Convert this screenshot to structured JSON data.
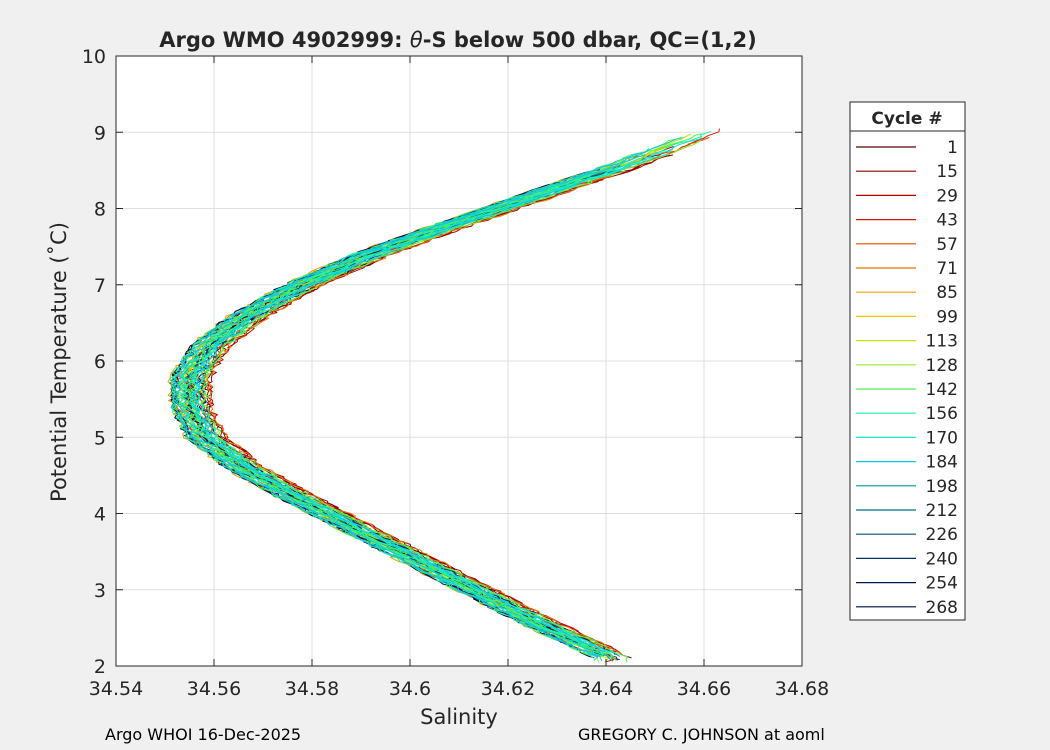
{
  "chart_data": {
    "type": "line",
    "title_prefix": "Argo WMO 4902999: ",
    "title_symbol": "θ",
    "title_suffix": "-S below 500 dbar,  QC=(1,2)",
    "xlabel": "Salinity",
    "ylabel": "Potential Temperature (˚C)",
    "xlim": [
      34.54,
      34.68
    ],
    "ylim": [
      2,
      10
    ],
    "x_ticks": [
      34.54,
      34.56,
      34.58,
      34.6,
      34.62,
      34.64,
      34.66,
      34.68
    ],
    "x_tick_labels": [
      "34.54",
      "34.56",
      "34.58",
      "34.6",
      "34.62",
      "34.64",
      "34.66",
      "34.68"
    ],
    "y_ticks": [
      2,
      3,
      4,
      5,
      6,
      7,
      8,
      9,
      10
    ],
    "y_tick_labels": [
      "2",
      "3",
      "4",
      "5",
      "6",
      "7",
      "8",
      "9",
      "10"
    ],
    "grid": true,
    "legend_title": "Cycle #",
    "legend_placement": "right, outside plot",
    "series": [
      {
        "name": "1",
        "color": "#5a0000"
      },
      {
        "name": "15",
        "color": "#8b0000"
      },
      {
        "name": "29",
        "color": "#b30000"
      },
      {
        "name": "43",
        "color": "#d21e00"
      },
      {
        "name": "57",
        "color": "#e04a00"
      },
      {
        "name": "71",
        "color": "#e87800"
      },
      {
        "name": "85",
        "color": "#eaa000"
      },
      {
        "name": "99",
        "color": "#e8c800"
      },
      {
        "name": "113",
        "color": "#c8e000"
      },
      {
        "name": "128",
        "color": "#90ee20"
      },
      {
        "name": "142",
        "color": "#50f050"
      },
      {
        "name": "156",
        "color": "#20f0a0"
      },
      {
        "name": "170",
        "color": "#10e8d0"
      },
      {
        "name": "184",
        "color": "#10c8e0"
      },
      {
        "name": "198",
        "color": "#0096a0"
      },
      {
        "name": "212",
        "color": "#006e8a"
      },
      {
        "name": "226",
        "color": "#00507a"
      },
      {
        "name": "240",
        "color": "#003070"
      },
      {
        "name": "254",
        "color": "#001a50"
      },
      {
        "name": "268",
        "color": "#000a40"
      }
    ],
    "profile_envelope": {
      "theta": [
        9.0,
        8.6,
        8.2,
        7.8,
        7.4,
        7.0,
        6.6,
        6.2,
        5.8,
        5.4,
        5.0,
        4.6,
        4.2,
        3.8,
        3.4,
        3.0,
        2.6,
        2.2,
        2.1
      ],
      "salinity": [
        34.661,
        34.645,
        34.627,
        34.609,
        34.592,
        34.578,
        34.567,
        34.559,
        34.555,
        34.555,
        34.558,
        34.566,
        34.577,
        34.589,
        34.601,
        34.613,
        34.625,
        34.638,
        34.641
      ]
    }
  },
  "footer": {
    "left": "Argo WHOI 16-Dec-2025",
    "right": "GREGORY C. JOHNSON at aoml"
  }
}
